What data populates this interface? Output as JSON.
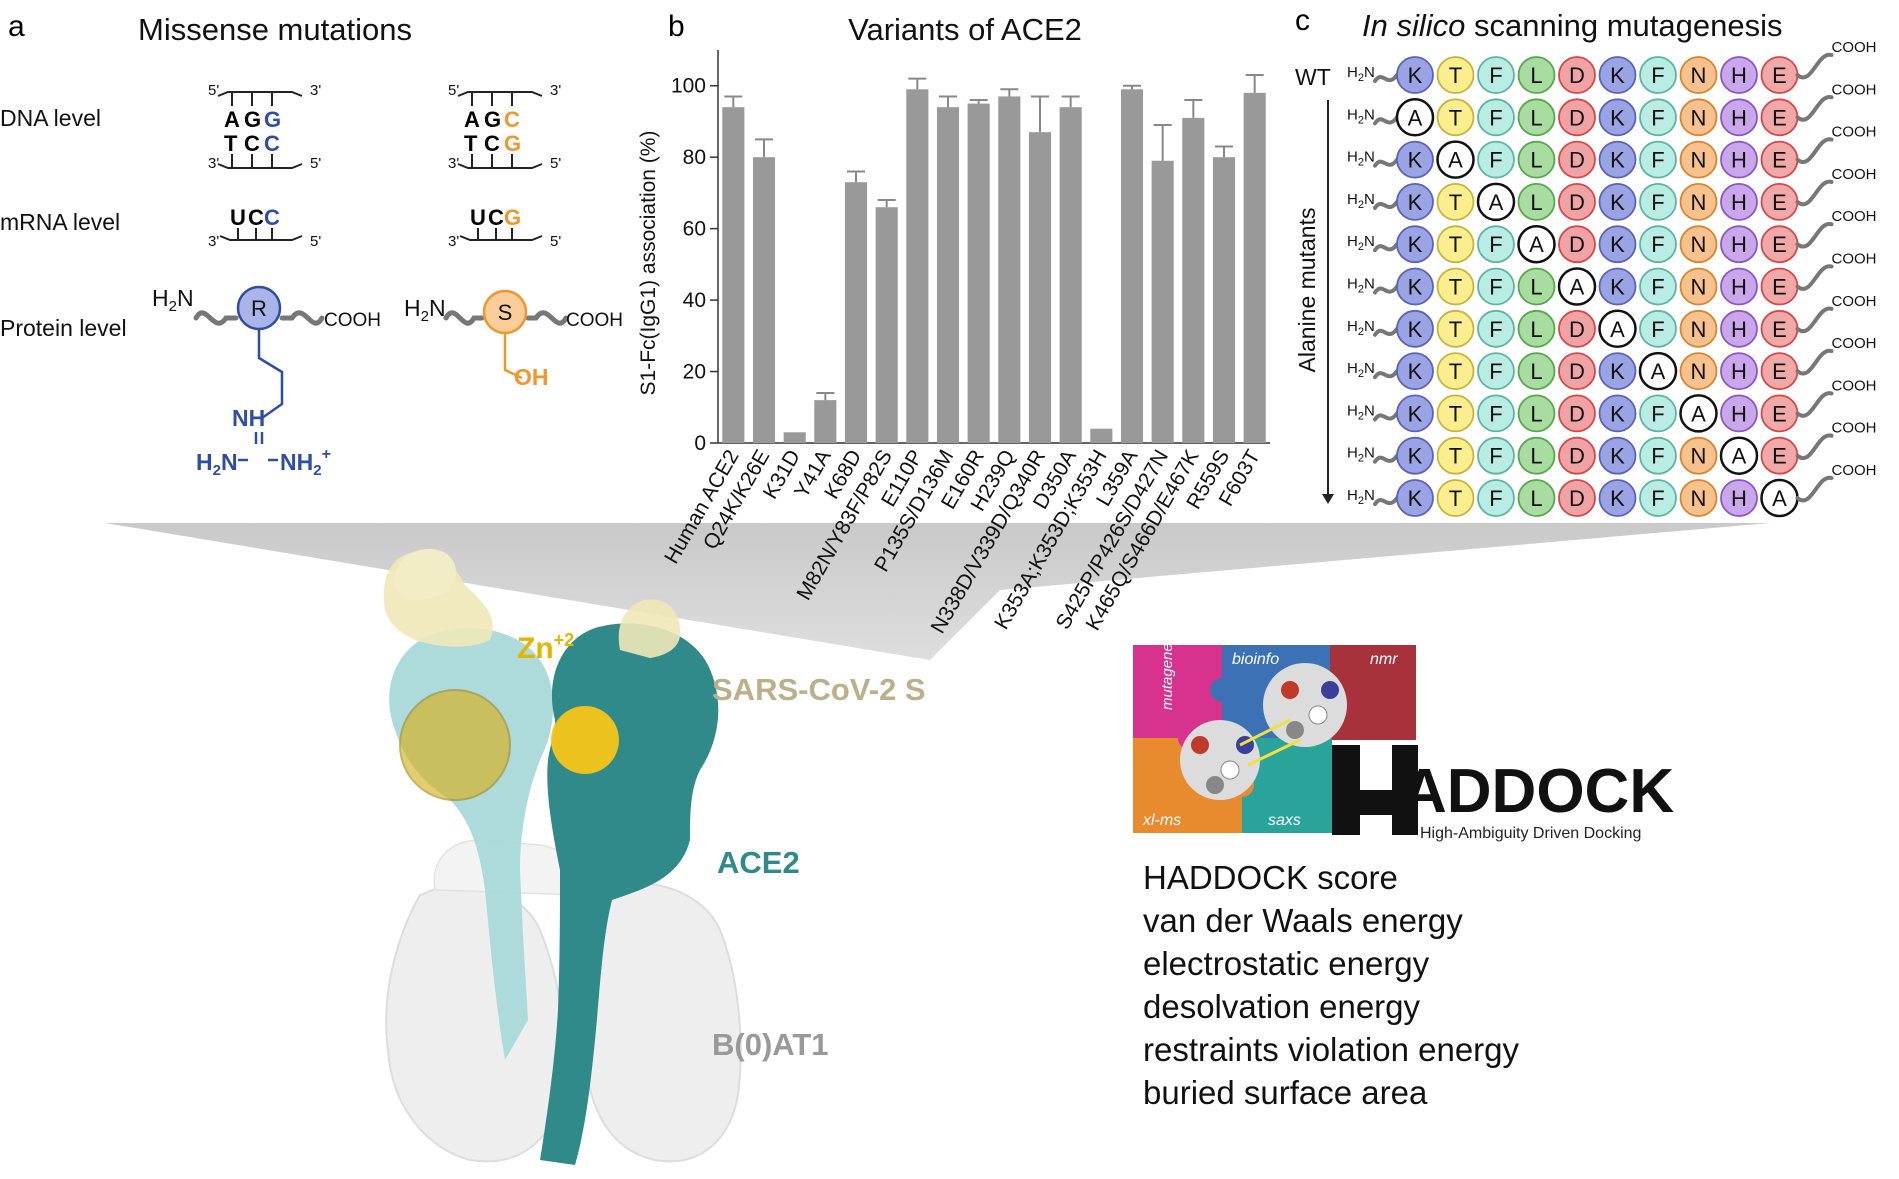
{
  "panel_a": {
    "letter": "a",
    "title": "Missense mutations",
    "levels": {
      "dna": "DNA level",
      "mrna": "mRNA level",
      "protein": "Protein level"
    },
    "end5": "5'",
    "end3": "3'",
    "wild_type": {
      "dna_top": [
        "A",
        "G",
        "G"
      ],
      "dna_bottom": [
        "T",
        "C",
        "C"
      ],
      "mrna": [
        "U",
        "C",
        "C"
      ],
      "residue": "R",
      "nh": "NH",
      "h2n": "H",
      "sub2": "2",
      "n_left": "N",
      "nh_right": "NH",
      "plus": "+"
    },
    "mutant": {
      "dna_top": [
        "A",
        "G",
        "C"
      ],
      "dna_bottom": [
        "T",
        "C",
        "G"
      ],
      "mrna": [
        "U",
        "C",
        "G"
      ],
      "residue": "S",
      "oh": "OH"
    },
    "h2n_label": "H",
    "h2n_sub": "2",
    "h2n_n": "N",
    "cooh": "COOH",
    "colors": {
      "wt": "#2f4ea3",
      "mut": "#f0962a",
      "wt_fill": "#a9b4e8",
      "mut_fill": "#fbcd98"
    }
  },
  "panel_b": {
    "letter": "b",
    "chart_data": {
      "type": "bar",
      "title": "Variants of ACE2",
      "ylabel": "S1-Fc(IgG1) association (%)",
      "xlabel": "",
      "ylim": [
        0,
        110
      ],
      "yticks": [
        "0",
        "20",
        "40",
        "60",
        "80",
        "100"
      ],
      "categories": [
        "Human ACE2",
        "Q24K/K26E",
        "K31D",
        "Y41A",
        "K68D",
        "M82N/Y83F/P82S",
        "E110P",
        "P135S/D136M",
        "E160R",
        "H239Q",
        "N338D/V339D/Q340R",
        "D350A",
        "K353A;K353D;K353H",
        "L359A",
        "S425P/P426S/D427N",
        "K465Q/S466D/E467K",
        "R559S",
        "F603T"
      ],
      "values": [
        94,
        80,
        3,
        12,
        73,
        66,
        99,
        94,
        95,
        97,
        87,
        94,
        4,
        99,
        79,
        91,
        80,
        98
      ],
      "errors": [
        3,
        5,
        0,
        2,
        3,
        2,
        3,
        3,
        1,
        2,
        10,
        3,
        0,
        1,
        10,
        5,
        3,
        5
      ],
      "bar_color": "#999999",
      "grid": false
    }
  },
  "panel_c": {
    "letter": "c",
    "title_italic": "In silico",
    "title_rest": " scanning mutagenesis",
    "wt_label": "WT",
    "side_label": "Alanine mutants",
    "h2n": "H",
    "sub": "2",
    "n": "N",
    "cooh": "COOH",
    "sequence": [
      "K",
      "T",
      "F",
      "L",
      "D",
      "K",
      "F",
      "N",
      "H",
      "E"
    ],
    "mutant_residue": "A",
    "residue_colors": {
      "K": "#9aa3e3",
      "T": "#fbee8e",
      "F": "#b9ece3",
      "L": "#a8dca0",
      "D": "#f0a3a5",
      "N": "#f8c28f",
      "H": "#c9a7ea",
      "E": "#f1a8a8"
    },
    "residue_strokes": {
      "K": "#5b63b8",
      "T": "#c9b33a",
      "F": "#5bb5a5",
      "L": "#56a84c",
      "D": "#d44848",
      "N": "#d9842e",
      "H": "#8b57c3",
      "E": "#d44848"
    }
  },
  "structure": {
    "zn": "Zn",
    "zn_sup": "+2",
    "spike": "SARS-CoV-2 S",
    "ace2": "ACE2",
    "bat": "B(0)AT1",
    "colors": {
      "spike": "#efe8b8",
      "ace2_light": "#a9d8d8",
      "ace2_dark": "#2f8a89",
      "bat": "#eeeeee",
      "zn": "#f5c518"
    }
  },
  "haddock": {
    "pieces": [
      "mutagenesis",
      "bioinfo",
      "nmr",
      "xl-ms",
      "saxs"
    ],
    "piece_colors": [
      "#d6328e",
      "#3c72b5",
      "#a8323c",
      "#e88a2e",
      "#2aa39a"
    ],
    "logo_text": "ADDOCK",
    "tagline": "High-Ambiguity Driven Docking",
    "metrics": [
      "HADDOCK score",
      "van der Waals energy",
      "electrostatic energy",
      "desolvation energy",
      "restraints violation energy",
      "buried surface area"
    ]
  }
}
